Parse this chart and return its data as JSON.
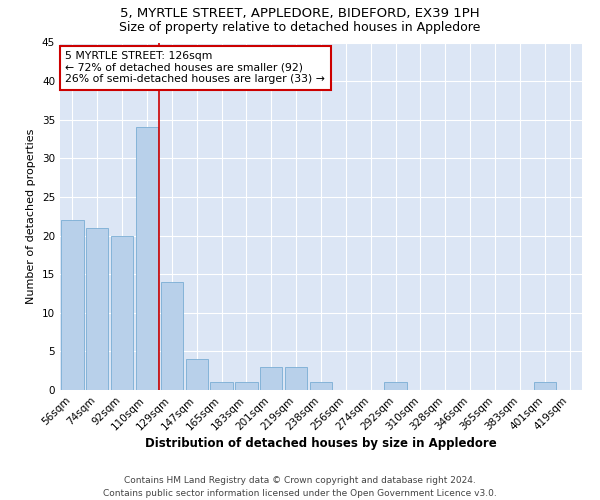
{
  "title": "5, MYRTLE STREET, APPLEDORE, BIDEFORD, EX39 1PH",
  "subtitle": "Size of property relative to detached houses in Appledore",
  "xlabel": "Distribution of detached houses by size in Appledore",
  "ylabel": "Number of detached properties",
  "bar_color": "#b8d0ea",
  "bar_edge_color": "#7aadd4",
  "background_color": "#dce6f5",
  "grid_color": "#ffffff",
  "annotation_line_color": "#cc0000",
  "annotation_box_color": "#cc0000",
  "annotation_line1": "5 MYRTLE STREET: 126sqm",
  "annotation_line2": "← 72% of detached houses are smaller (92)",
  "annotation_line3": "26% of semi-detached houses are larger (33) →",
  "categories": [
    "56sqm",
    "74sqm",
    "92sqm",
    "110sqm",
    "129sqm",
    "147sqm",
    "165sqm",
    "183sqm",
    "201sqm",
    "219sqm",
    "238sqm",
    "256sqm",
    "274sqm",
    "292sqm",
    "310sqm",
    "328sqm",
    "346sqm",
    "365sqm",
    "383sqm",
    "401sqm",
    "419sqm"
  ],
  "values": [
    22,
    21,
    20,
    34,
    14,
    4,
    1,
    1,
    3,
    3,
    1,
    0,
    0,
    1,
    0,
    0,
    0,
    0,
    0,
    1,
    0
  ],
  "ylim": [
    0,
    45
  ],
  "yticks": [
    0,
    5,
    10,
    15,
    20,
    25,
    30,
    35,
    40,
    45
  ],
  "vline_pos": 3.5,
  "footer_line1": "Contains HM Land Registry data © Crown copyright and database right 2024.",
  "footer_line2": "Contains public sector information licensed under the Open Government Licence v3.0.",
  "title_fontsize": 9.5,
  "subtitle_fontsize": 9,
  "ylabel_fontsize": 8,
  "xlabel_fontsize": 8.5,
  "tick_fontsize": 7.5,
  "footer_fontsize": 6.5,
  "ann_fontsize": 7.8
}
